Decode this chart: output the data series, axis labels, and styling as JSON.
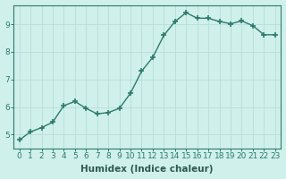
{
  "x": [
    0,
    1,
    2,
    3,
    4,
    5,
    6,
    7,
    8,
    9,
    10,
    11,
    12,
    13,
    14,
    15,
    16,
    17,
    18,
    19,
    20,
    21,
    22,
    23
  ],
  "y": [
    4.8,
    5.1,
    5.25,
    5.45,
    6.05,
    6.2,
    5.95,
    5.75,
    5.8,
    5.95,
    6.5,
    7.3,
    7.8,
    8.6,
    9.1,
    9.42,
    9.22,
    9.22,
    9.1,
    9.02,
    9.12,
    8.95,
    8.62,
    8.62
  ],
  "line_color": "#2d7a6c",
  "marker": "+",
  "marker_size": 4,
  "marker_lw": 1.2,
  "bg_color": "#cff0eb",
  "grid_color": "#b8ddd8",
  "xlabel": "Humidex (Indice chaleur)",
  "xlim": [
    -0.5,
    23.5
  ],
  "ylim": [
    4.5,
    9.7
  ],
  "yticks": [
    5,
    6,
    7,
    8,
    9
  ],
  "xticks": [
    0,
    1,
    2,
    3,
    4,
    5,
    6,
    7,
    8,
    9,
    10,
    11,
    12,
    13,
    14,
    15,
    16,
    17,
    18,
    19,
    20,
    21,
    22,
    23
  ],
  "tick_fontsize": 6.5,
  "label_fontsize": 7.5,
  "linewidth": 1.0,
  "spine_color": "#2d7a6c",
  "tick_color": "#2d7a6c",
  "text_color": "#2d5a50"
}
